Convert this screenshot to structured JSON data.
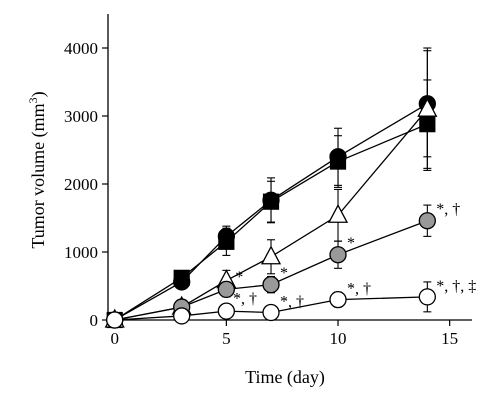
{
  "chart_data": {
    "type": "line",
    "title": "",
    "xlabel": "Time (day)",
    "ylabel_main": "Tumor volume (mm",
    "ylabel_sup": "3",
    "ylabel_close": ")",
    "xlim": [
      -0.3,
      16
    ],
    "ylim": [
      0,
      4500
    ],
    "xticks": [
      0,
      5,
      10,
      15
    ],
    "yticks": [
      0,
      1000,
      2000,
      3000,
      4000
    ],
    "grid": false,
    "legend": "none",
    "series": [
      {
        "marker": "circle",
        "fill": "#000000",
        "x": [
          0,
          3,
          5,
          7,
          10,
          14
        ],
        "y": [
          0,
          560,
          1230,
          1760,
          2400,
          3180
        ],
        "err": [
          0,
          60,
          150,
          330,
          420,
          780
        ]
      },
      {
        "marker": "square",
        "fill": "#000000",
        "x": [
          0,
          3,
          5,
          7,
          10,
          14
        ],
        "y": [
          0,
          620,
          1150,
          1740,
          2330,
          2880
        ],
        "err": [
          0,
          60,
          200,
          300,
          380,
          650
        ]
      },
      {
        "marker": "triangle",
        "fill": "#ffffff",
        "x": [
          0,
          3,
          5,
          7,
          10,
          14
        ],
        "y": [
          0,
          190,
          580,
          930,
          1540,
          3100
        ],
        "err": [
          0,
          40,
          150,
          250,
          380,
          900
        ]
      },
      {
        "marker": "circle",
        "fill": "#999999",
        "x": [
          0,
          3,
          5,
          7,
          10,
          14
        ],
        "y": [
          0,
          190,
          450,
          520,
          960,
          1460
        ],
        "err": [
          0,
          40,
          110,
          120,
          200,
          230
        ]
      },
      {
        "marker": "circle",
        "fill": "#ffffff",
        "x": [
          0,
          3,
          5,
          7,
          10,
          14
        ],
        "y": [
          0,
          60,
          130,
          110,
          300,
          340
        ],
        "err": [
          0,
          20,
          40,
          30,
          110,
          220
        ]
      }
    ],
    "annotations": [
      {
        "text": "*",
        "x": 5.4,
        "y": 560
      },
      {
        "text": "*",
        "x": 7.4,
        "y": 620
      },
      {
        "text": "*",
        "x": 10.4,
        "y": 1060
      },
      {
        "text": "*, †",
        "x": 14.4,
        "y": 1560
      },
      {
        "text": "*, †",
        "x": 5.3,
        "y": 240
      },
      {
        "text": "*, †",
        "x": 7.4,
        "y": 200
      },
      {
        "text": "*, †",
        "x": 10.4,
        "y": 390
      },
      {
        "text": "*, †, ‡",
        "x": 14.4,
        "y": 430
      }
    ]
  }
}
